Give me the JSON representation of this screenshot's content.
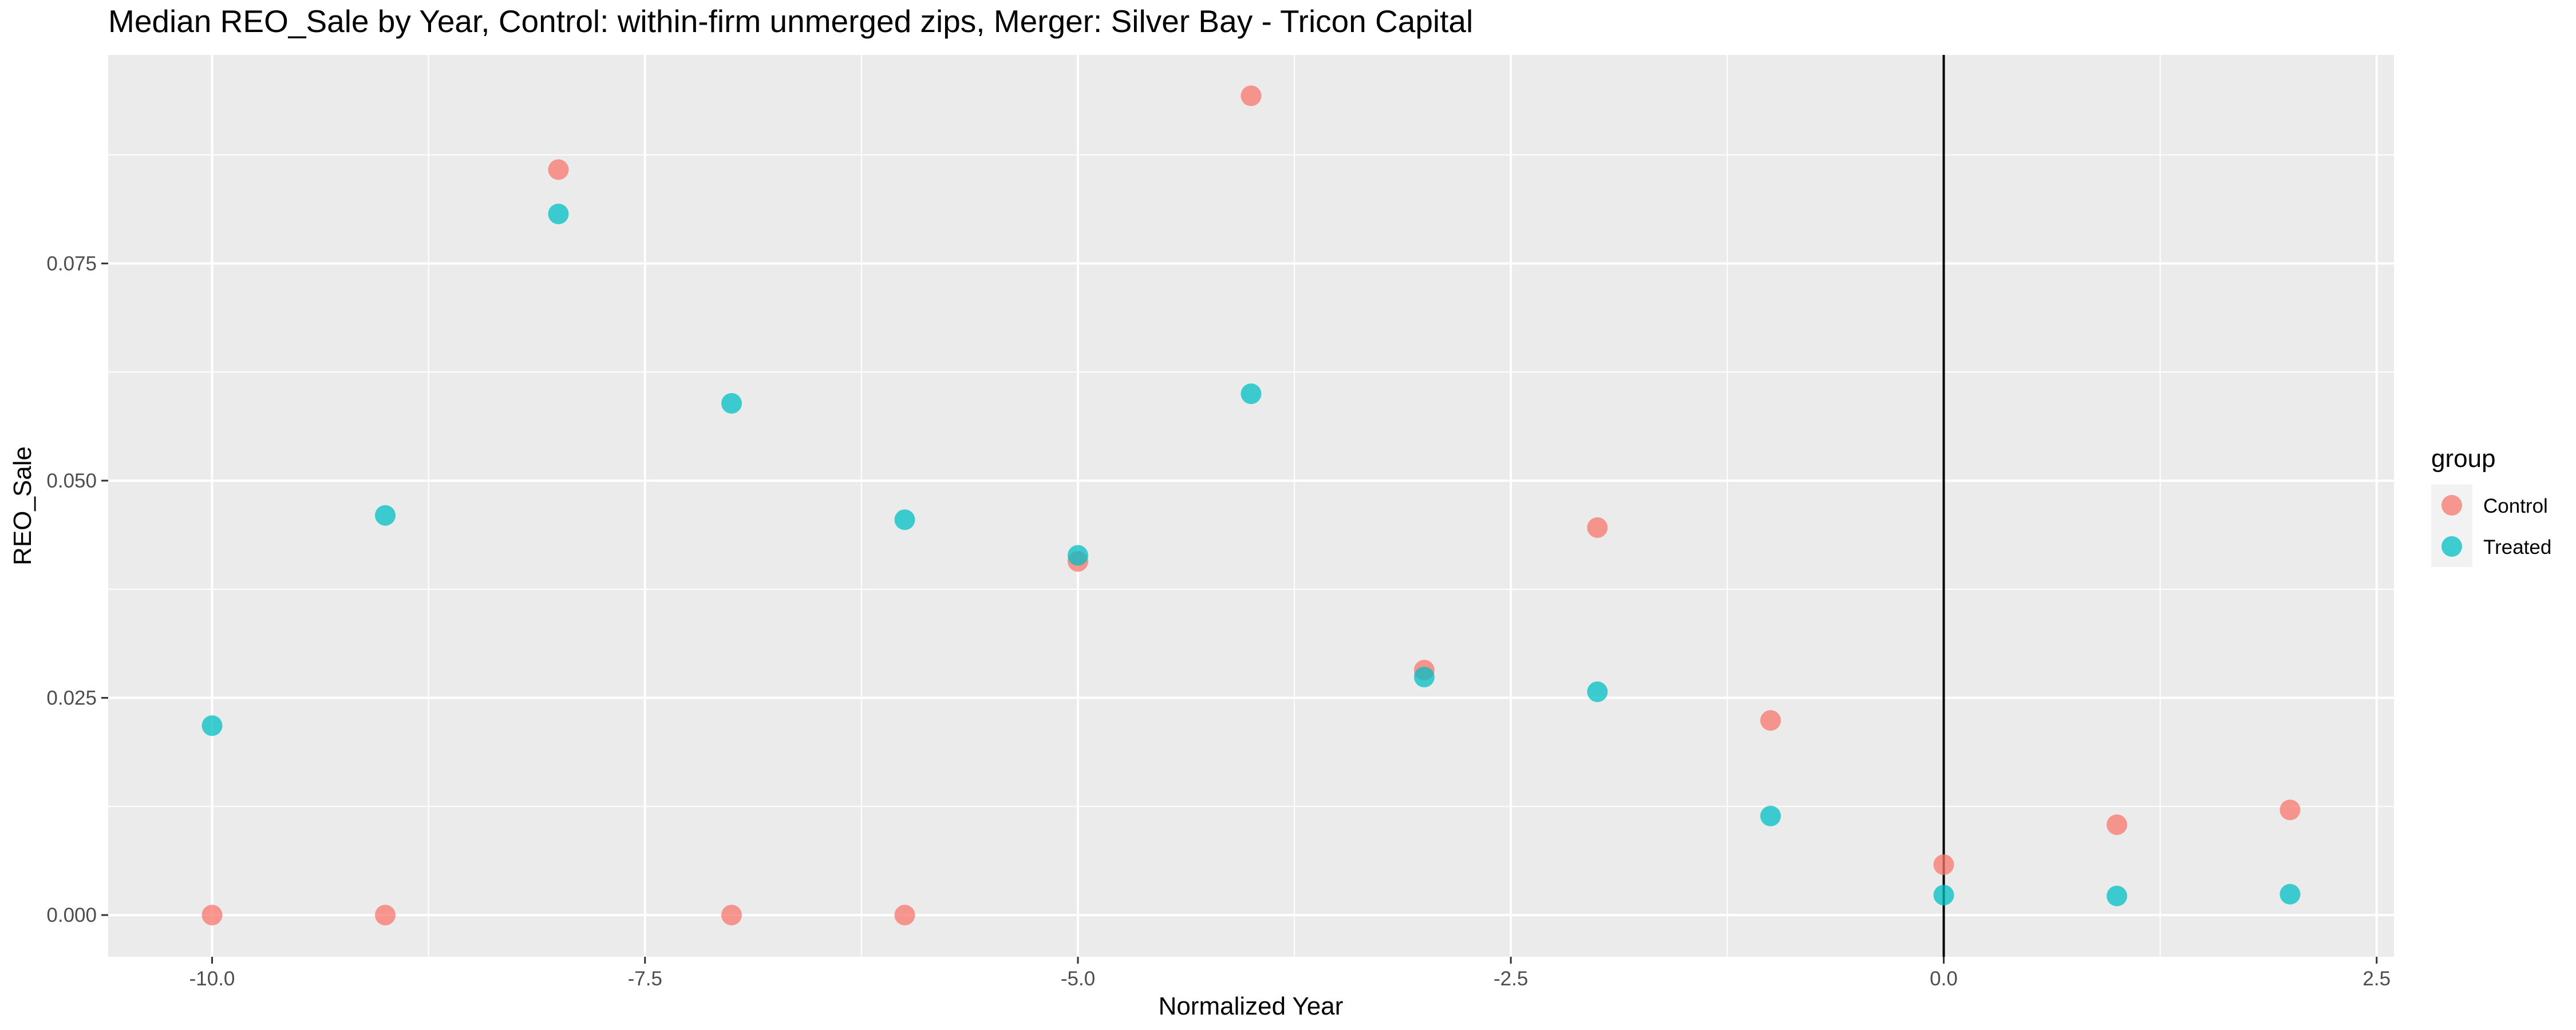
{
  "chart_data": {
    "type": "scatter",
    "title": "Median REO_Sale by Year, Control: within-firm unmerged zips, Merger: Silver Bay - Tricon Capital",
    "xlabel": "Normalized Year",
    "ylabel": "REO_Sale",
    "xlim": [
      -10.6,
      2.6
    ],
    "ylim": [
      -0.0048,
      0.099
    ],
    "x_ticks": [
      -10.0,
      -7.5,
      -5.0,
      -2.5,
      0.0,
      2.5
    ],
    "x_tick_labels": [
      "-10.0",
      "-7.5",
      "-5.0",
      "-2.5",
      "0.0",
      "2.5"
    ],
    "y_ticks": [
      0.0,
      0.025,
      0.05,
      0.075
    ],
    "y_tick_labels": [
      "0.000",
      "0.025",
      "0.050",
      "0.075"
    ],
    "vline_x": 0,
    "grid": true,
    "background": "#EBEBEB",
    "legend_title": "group",
    "legend_position": "right",
    "series": [
      {
        "name": "Control",
        "color": "#F8766D",
        "x": [
          -10,
          -9,
          -8,
          -7,
          -6,
          -5,
          -4,
          -3,
          -2,
          -1,
          0,
          1,
          2
        ],
        "y": [
          0.0,
          0.0,
          0.0858,
          0.0,
          0.0,
          0.0407,
          0.0943,
          0.0282,
          0.0446,
          0.0224,
          0.0058,
          0.0104,
          0.0121
        ]
      },
      {
        "name": "Treated",
        "color": "#00BFC4",
        "x": [
          -10,
          -9,
          -8,
          -7,
          -6,
          -5,
          -4,
          -3,
          -2,
          -1,
          0,
          1,
          2
        ],
        "y": [
          0.0218,
          0.046,
          0.0807,
          0.0589,
          0.0455,
          0.0414,
          0.06,
          0.0274,
          0.0257,
          0.0114,
          0.0023,
          0.0022,
          0.0024
        ]
      }
    ]
  }
}
